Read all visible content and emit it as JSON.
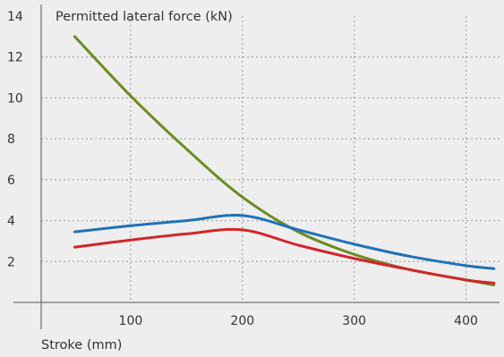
{
  "chart_data": {
    "type": "line",
    "title": "",
    "ylabel": "Permitted lateral force (kN)",
    "xlabel": "Stroke (mm)",
    "xlim": [
      20,
      430
    ],
    "ylim": [
      0,
      14
    ],
    "xticks": [
      100,
      200,
      300,
      400
    ],
    "yticks": [
      2,
      4,
      6,
      8,
      10,
      12,
      14
    ],
    "grid": true,
    "series": [
      {
        "color": "#6b8c1e",
        "x": [
          50,
          100,
          150,
          200,
          250,
          300,
          350,
          400,
          425
        ],
        "y": [
          13.0,
          10.1,
          7.5,
          5.15,
          3.45,
          2.35,
          1.6,
          1.1,
          0.85
        ]
      },
      {
        "color": "#1f72b8",
        "x": [
          50,
          100,
          150,
          200,
          250,
          300,
          350,
          400,
          425
        ],
        "y": [
          3.45,
          3.75,
          4.0,
          4.25,
          3.55,
          2.85,
          2.25,
          1.8,
          1.65
        ]
      },
      {
        "color": "#d1262b",
        "x": [
          50,
          100,
          150,
          200,
          250,
          300,
          350,
          400,
          425
        ],
        "y": [
          2.7,
          3.05,
          3.35,
          3.55,
          2.8,
          2.15,
          1.6,
          1.1,
          0.95
        ]
      }
    ]
  }
}
